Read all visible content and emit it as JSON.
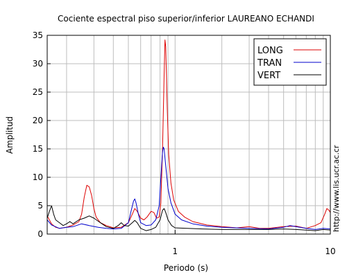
{
  "chart_data": {
    "type": "line",
    "title": "Cociente espectral piso superior/inferior LAUREANO ECHANDI",
    "xlabel": "Periodo (s)",
    "ylabel": "Amplitud",
    "xscale": "log",
    "xlim": [
      0.15,
      10
    ],
    "ylim": [
      0,
      35
    ],
    "xticks": [
      1,
      10
    ],
    "xtick_labels": [
      "1",
      "10"
    ],
    "yticks": [
      0,
      5,
      10,
      15,
      20,
      25,
      30,
      35
    ],
    "ytick_labels": [
      "0",
      "5",
      "10",
      "15",
      "20",
      "25",
      "30",
      "35"
    ],
    "grid": true,
    "legend_position": "top-right",
    "credit": "http://www.lis.ucr.ac.cr",
    "series": [
      {
        "name": "LONG",
        "color": "#dd0000",
        "points": [
          [
            0.15,
            3.2
          ],
          [
            0.16,
            1.8
          ],
          [
            0.17,
            1.2
          ],
          [
            0.18,
            1.0
          ],
          [
            0.2,
            1.2
          ],
          [
            0.22,
            1.6
          ],
          [
            0.24,
            2.2
          ],
          [
            0.25,
            3.5
          ],
          [
            0.26,
            6.5
          ],
          [
            0.27,
            8.6
          ],
          [
            0.28,
            8.3
          ],
          [
            0.29,
            6.8
          ],
          [
            0.3,
            4.5
          ],
          [
            0.31,
            3.0
          ],
          [
            0.33,
            2.0
          ],
          [
            0.36,
            1.5
          ],
          [
            0.4,
            1.1
          ],
          [
            0.45,
            1.2
          ],
          [
            0.5,
            2.0
          ],
          [
            0.53,
            3.5
          ],
          [
            0.55,
            4.5
          ],
          [
            0.57,
            4.0
          ],
          [
            0.6,
            2.8
          ],
          [
            0.63,
            2.5
          ],
          [
            0.66,
            3.0
          ],
          [
            0.7,
            4.0
          ],
          [
            0.73,
            3.8
          ],
          [
            0.76,
            2.8
          ],
          [
            0.79,
            3.0
          ],
          [
            0.81,
            5.5
          ],
          [
            0.83,
            15.0
          ],
          [
            0.85,
            28.0
          ],
          [
            0.86,
            34.2
          ],
          [
            0.87,
            33.0
          ],
          [
            0.89,
            22.0
          ],
          [
            0.91,
            14.0
          ],
          [
            0.94,
            9.0
          ],
          [
            0.98,
            6.0
          ],
          [
            1.05,
            4.0
          ],
          [
            1.15,
            3.0
          ],
          [
            1.3,
            2.2
          ],
          [
            1.6,
            1.6
          ],
          [
            2.0,
            1.3
          ],
          [
            2.5,
            1.1
          ],
          [
            3.0,
            1.3
          ],
          [
            3.5,
            1.0
          ],
          [
            4.0,
            1.0
          ],
          [
            5.0,
            1.3
          ],
          [
            6.0,
            1.4
          ],
          [
            7.0,
            1.0
          ],
          [
            8.0,
            1.5
          ],
          [
            8.7,
            2.0
          ],
          [
            9.2,
            3.5
          ],
          [
            9.5,
            4.5
          ],
          [
            9.8,
            4.2
          ],
          [
            10.0,
            3.8
          ]
        ]
      },
      {
        "name": "TRAN",
        "color": "#0000cc",
        "points": [
          [
            0.15,
            2.5
          ],
          [
            0.16,
            1.6
          ],
          [
            0.18,
            1.0
          ],
          [
            0.2,
            1.2
          ],
          [
            0.22,
            1.3
          ],
          [
            0.25,
            1.8
          ],
          [
            0.28,
            1.5
          ],
          [
            0.32,
            1.2
          ],
          [
            0.36,
            1.0
          ],
          [
            0.4,
            0.9
          ],
          [
            0.45,
            1.0
          ],
          [
            0.5,
            2.0
          ],
          [
            0.52,
            4.0
          ],
          [
            0.54,
            5.8
          ],
          [
            0.55,
            6.2
          ],
          [
            0.56,
            5.5
          ],
          [
            0.58,
            3.5
          ],
          [
            0.6,
            2.0
          ],
          [
            0.65,
            1.5
          ],
          [
            0.7,
            1.6
          ],
          [
            0.75,
            2.5
          ],
          [
            0.79,
            5.0
          ],
          [
            0.81,
            10.0
          ],
          [
            0.83,
            14.5
          ],
          [
            0.84,
            15.3
          ],
          [
            0.85,
            15.0
          ],
          [
            0.87,
            12.0
          ],
          [
            0.9,
            8.0
          ],
          [
            0.94,
            5.5
          ],
          [
            1.0,
            3.5
          ],
          [
            1.1,
            2.5
          ],
          [
            1.3,
            1.8
          ],
          [
            1.6,
            1.4
          ],
          [
            2.0,
            1.2
          ],
          [
            3.0,
            1.0
          ],
          [
            4.0,
            0.9
          ],
          [
            5.0,
            1.2
          ],
          [
            5.5,
            1.5
          ],
          [
            6.0,
            1.3
          ],
          [
            7.0,
            1.0
          ],
          [
            8.0,
            0.8
          ],
          [
            9.0,
            1.0
          ],
          [
            10.0,
            0.9
          ]
        ]
      },
      {
        "name": "VERT",
        "color": "#000000",
        "points": [
          [
            0.15,
            2.8
          ],
          [
            0.155,
            4.0
          ],
          [
            0.16,
            5.0
          ],
          [
            0.165,
            3.5
          ],
          [
            0.17,
            2.5
          ],
          [
            0.18,
            2.0
          ],
          [
            0.19,
            1.5
          ],
          [
            0.2,
            1.8
          ],
          [
            0.21,
            2.2
          ],
          [
            0.22,
            1.8
          ],
          [
            0.24,
            2.5
          ],
          [
            0.26,
            2.8
          ],
          [
            0.28,
            3.2
          ],
          [
            0.3,
            2.8
          ],
          [
            0.33,
            2.0
          ],
          [
            0.36,
            1.3
          ],
          [
            0.4,
            1.0
          ],
          [
            0.43,
            1.5
          ],
          [
            0.45,
            2.0
          ],
          [
            0.47,
            1.5
          ],
          [
            0.5,
            1.4
          ],
          [
            0.53,
            2.0
          ],
          [
            0.55,
            2.4
          ],
          [
            0.57,
            2.0
          ],
          [
            0.6,
            1.0
          ],
          [
            0.65,
            0.6
          ],
          [
            0.7,
            0.8
          ],
          [
            0.75,
            1.2
          ],
          [
            0.8,
            2.5
          ],
          [
            0.83,
            4.2
          ],
          [
            0.85,
            4.5
          ],
          [
            0.87,
            3.8
          ],
          [
            0.9,
            2.5
          ],
          [
            0.95,
            1.5
          ],
          [
            1.0,
            1.1
          ],
          [
            1.2,
            1.0
          ],
          [
            1.5,
            0.9
          ],
          [
            2.0,
            0.8
          ],
          [
            3.0,
            0.8
          ],
          [
            4.0,
            0.8
          ],
          [
            5.0,
            0.9
          ],
          [
            6.0,
            0.8
          ],
          [
            7.0,
            0.7
          ],
          [
            8.0,
            0.6
          ],
          [
            9.0,
            0.8
          ],
          [
            10.0,
            0.7
          ]
        ]
      }
    ]
  }
}
